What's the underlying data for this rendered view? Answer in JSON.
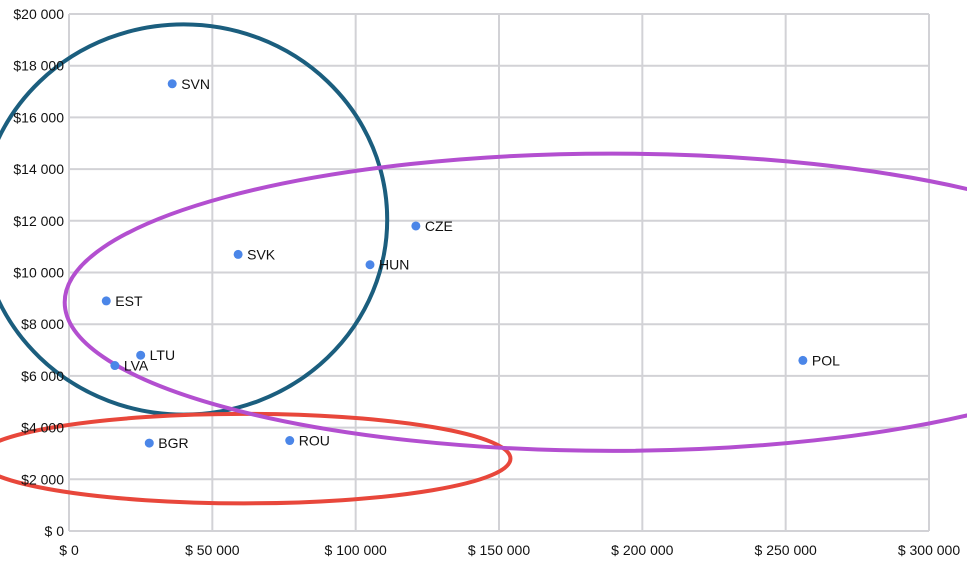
{
  "chart_data": {
    "type": "scatter",
    "title": "",
    "xlabel": "",
    "ylabel": "",
    "xlim": [
      0,
      300000
    ],
    "ylim": [
      0,
      20000
    ],
    "grid": true,
    "x_ticks": [
      0,
      50000,
      100000,
      150000,
      200000,
      250000,
      300000
    ],
    "y_ticks": [
      0,
      2000,
      4000,
      6000,
      8000,
      10000,
      12000,
      14000,
      16000,
      18000,
      20000
    ],
    "x_tick_labels": [
      "$ 0",
      "$ 50 000",
      "$ 100 000",
      "$ 150 000",
      "$ 200 000",
      "$ 250 000",
      "$ 300 000"
    ],
    "y_tick_labels": [
      "$ 0",
      "$2 000",
      "$4 000",
      "$6 000",
      "$8 000",
      "$10 000",
      "$12 000",
      "$14 000",
      "$16 000",
      "$18 000",
      "$20 000"
    ],
    "point_color": "#4b86e8",
    "points": [
      {
        "label": "SVN",
        "x": 36000,
        "y": 17300
      },
      {
        "label": "SVK",
        "x": 59000,
        "y": 10700
      },
      {
        "label": "EST",
        "x": 13000,
        "y": 8900
      },
      {
        "label": "LTU",
        "x": 25000,
        "y": 6800
      },
      {
        "label": "LVA",
        "x": 16000,
        "y": 6400
      },
      {
        "label": "BGR",
        "x": 28000,
        "y": 3400
      },
      {
        "label": "ROU",
        "x": 77000,
        "y": 3500
      },
      {
        "label": "CZE",
        "x": 121000,
        "y": 11800
      },
      {
        "label": "HUN",
        "x": 105000,
        "y": 10300
      },
      {
        "label": "POL",
        "x": 256000,
        "y": 6600
      }
    ],
    "clusters": [
      {
        "members": [
          "SVN",
          "SVK",
          "EST",
          "LTU",
          "LVA"
        ],
        "color": "#1b5e7e",
        "cx": 40000,
        "cy": 12050,
        "rx": 71000,
        "ry": 7550
      },
      {
        "members": [
          "BGR",
          "ROU"
        ],
        "color": "#e8473b",
        "cx": 61000,
        "cy": 2800,
        "rx": 93000,
        "ry": 1730
      },
      {
        "members": [
          "CZE",
          "HUN",
          "POL"
        ],
        "color": "#b34fd0",
        "cx": 189500,
        "cy": 8850,
        "rx": 191000,
        "ry": 5750
      }
    ]
  }
}
